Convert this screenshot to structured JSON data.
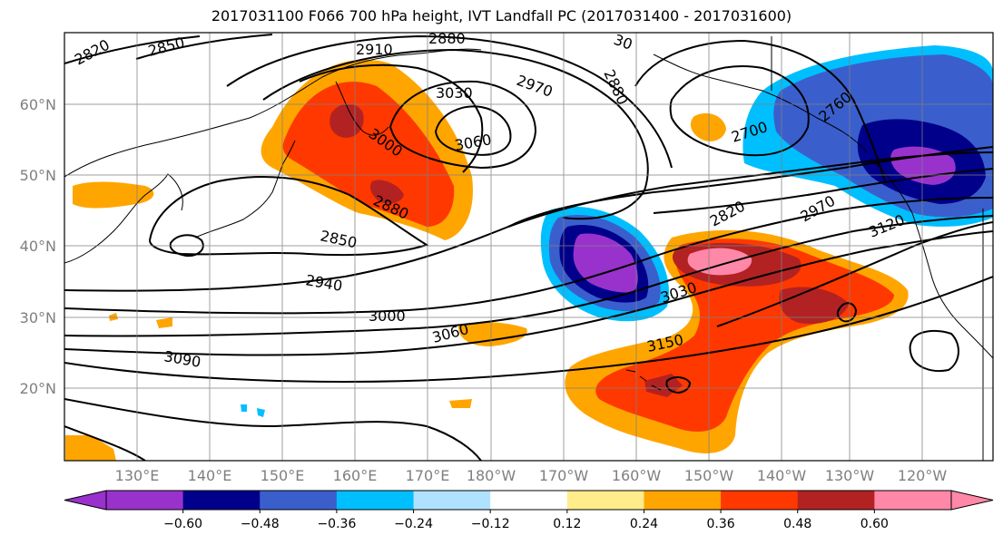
{
  "title": "2017031100 F066 700 hPa height, IVT Landfall PC (2017031400 - 2017031600)",
  "lat_ticks": [
    "60°N",
    "50°N",
    "40°N",
    "30°N",
    "20°N"
  ],
  "lon_ticks": [
    "130°E",
    "140°E",
    "150°E",
    "160°E",
    "170°E",
    "180°W",
    "170°W",
    "160°W",
    "150°W",
    "140°W",
    "130°W",
    "120°W"
  ],
  "contour_labels": [
    "2820",
    "2850",
    "2910",
    "2880",
    "30",
    "3030",
    "2970",
    "2880",
    "3060",
    "3000",
    "2880",
    "2850",
    "2940",
    "3000",
    "3060",
    "3090",
    "2700",
    "2760",
    "2820",
    "2970",
    "3120",
    "3030",
    "3150"
  ],
  "colorbar": {
    "colors": [
      "#9932cc",
      "#00008b",
      "#3a5fcd",
      "#00bfff",
      "#b0e2ff",
      "#ffffff",
      "#ffec8b",
      "#ffa500",
      "#ff3800",
      "#b22222",
      "#ff88a8"
    ],
    "over_color": "#ff88a8",
    "under_color": "#9932cc",
    "tick_labels": [
      "−0.60",
      "−0.48",
      "−0.36",
      "−0.24",
      "−0.12",
      "0.12",
      "0.24",
      "0.36",
      "0.48",
      "0.60"
    ]
  }
}
